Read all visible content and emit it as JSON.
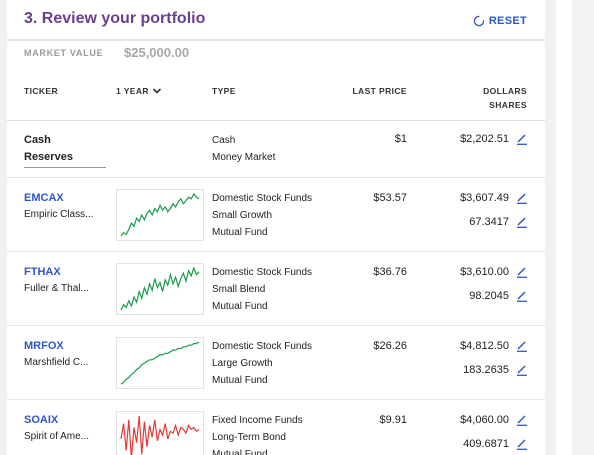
{
  "header": {
    "title": "3. Review your portfolio",
    "reset_label": "RESET",
    "market_value_label": "MARKET VALUE",
    "market_value": "$25,000.00"
  },
  "columns": {
    "ticker": "TICKER",
    "period": "1 YEAR",
    "type": "TYPE",
    "last_price": "LAST PRICE",
    "dollars": "DOLLARS",
    "shares": "SHARES"
  },
  "cash": {
    "name_line1": "Cash",
    "name_line2": "Reserves",
    "type1": "Cash",
    "type2": "Money Market",
    "price": "$1",
    "dollars": "$2,202.51"
  },
  "funds": [
    {
      "ticker": "EMCAX",
      "name": "Empiric Class...",
      "type1": "Domestic Stock Funds",
      "type2": "Small Growth",
      "type3": "Mutual Fund",
      "price": "$53.57",
      "dollars": "$3,607.49",
      "shares": "67.3417",
      "trend_color": "#1a9b4b",
      "trend": [
        14,
        16,
        15,
        18,
        22,
        20,
        25,
        23,
        27,
        24,
        28,
        30,
        27,
        31,
        29,
        33,
        30,
        32,
        29,
        31,
        34,
        32,
        35,
        37,
        34,
        36,
        38,
        37,
        40,
        38,
        37
      ]
    },
    {
      "ticker": "FTHAX",
      "name": "Fuller & Thal...",
      "type1": "Domestic Stock Funds",
      "type2": "Small Blend",
      "type3": "Mutual Fund",
      "price": "$36.76",
      "dollars": "$3,610.00",
      "shares": "98.2045",
      "trend_color": "#1a9b4b",
      "trend": [
        10,
        14,
        12,
        17,
        13,
        20,
        16,
        24,
        19,
        27,
        22,
        30,
        25,
        34,
        27,
        31,
        24,
        33,
        29,
        37,
        30,
        35,
        28,
        34,
        38,
        32,
        40,
        36,
        42,
        37,
        39
      ]
    },
    {
      "ticker": "MRFOX",
      "name": "Marshfield C...",
      "type1": "Domestic Stock Funds",
      "type2": "Large Growth",
      "type3": "Mutual Fund",
      "price": "$26.26",
      "dollars": "$4,812.50",
      "shares": "183.2635",
      "trend_color": "#1a9b4b",
      "trend": [
        12,
        13,
        15,
        16,
        18,
        19,
        21,
        22,
        24,
        25,
        26,
        27,
        27,
        28,
        29,
        30,
        30,
        31,
        31,
        32,
        33,
        33,
        34,
        34,
        35,
        35,
        36,
        36,
        37,
        37,
        38
      ]
    },
    {
      "ticker": "SOAIX",
      "name": "Spirit of Ame...",
      "type1": "Fixed Income Funds",
      "type2": "Long-Term Bond",
      "type3": "Mutual Fund",
      "price": "$9.91",
      "dollars": "$4,060.00",
      "shares": "409.6871",
      "trend_color": "#e53935",
      "trend": [
        28,
        36,
        22,
        38,
        18,
        34,
        26,
        40,
        20,
        37,
        24,
        35,
        29,
        38,
        27,
        33,
        30,
        36,
        28,
        32,
        31,
        35,
        30,
        34,
        33,
        31,
        35,
        33,
        34,
        32,
        33
      ]
    }
  ]
}
